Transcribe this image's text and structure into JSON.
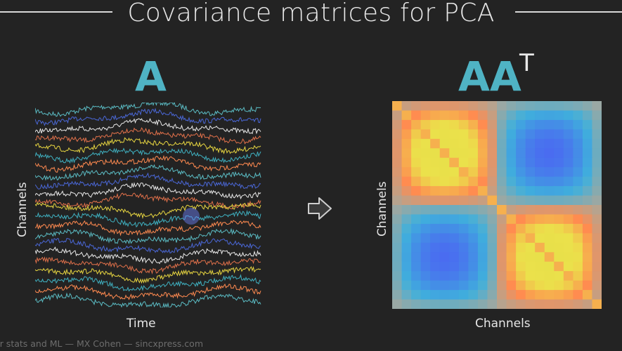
{
  "title": "Covariance matrices for PCA",
  "left_panel": {
    "label": "A",
    "xlabel": "Time",
    "ylabel": "Channels"
  },
  "right_panel": {
    "label": "AA",
    "label_superscript": "T",
    "xlabel": "Channels",
    "ylabel": "Channels"
  },
  "footer": "er stats and ML — MX Cohen — sincxpress.com",
  "colors": {
    "background": "#232323",
    "label_teal": "#4fb3c4",
    "trace_palette": [
      "#5bbcc4",
      "#4a67d6",
      "#e8e8e8",
      "#e0704a",
      "#e6d440",
      "#3fb0c0",
      "#ff8a50"
    ],
    "heatmap_low": "#4a6cf0",
    "heatmap_mid": "#a9a79a",
    "heatmap_high": "#e8e04a"
  },
  "icons": {
    "arrow": "right-arrow-icon"
  }
}
